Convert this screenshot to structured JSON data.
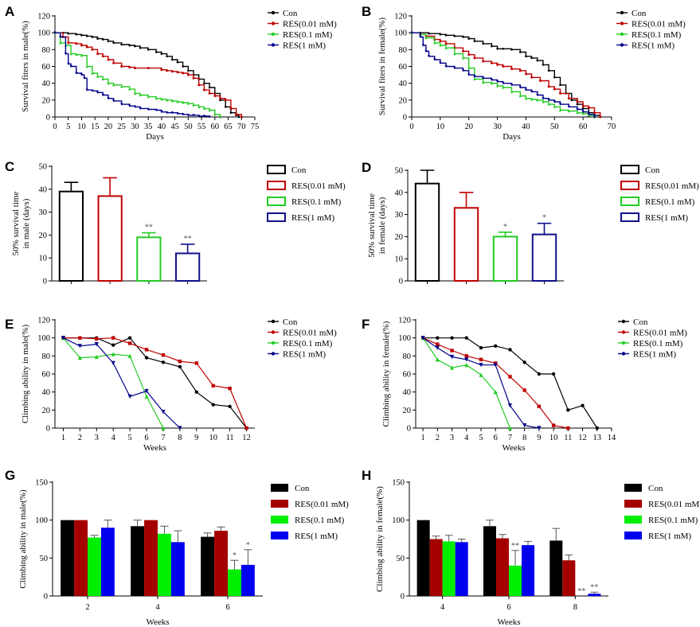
{
  "colors": {
    "con": "#000000",
    "res001": "#c00000",
    "res01": "#22cc22",
    "res1": "#10108a",
    "res001_bar": "#a50000",
    "res01_bar": "#00ee00",
    "res1_bar": "#0000ee",
    "res1_line": "#00008b"
  },
  "series_names": [
    "Con",
    "RES(0.01 mM)",
    "RES(0.1 mM)",
    "RES(1 mM)"
  ],
  "chart_data": [
    {
      "panel": "A",
      "type": "line",
      "ylabel": "Survival fiters in male(%)",
      "xlabel": "Days",
      "xlim": [
        0,
        75
      ],
      "ylim": [
        0,
        120
      ],
      "xticks": [
        0,
        5,
        10,
        15,
        20,
        25,
        30,
        35,
        40,
        45,
        50,
        55,
        60,
        65,
        70,
        75
      ],
      "yticks": [
        0,
        20,
        40,
        60,
        80,
        100,
        120
      ],
      "series": [
        {
          "name": "Con",
          "step": true,
          "x": [
            0,
            3,
            5,
            8,
            10,
            12,
            14,
            16,
            18,
            20,
            22,
            25,
            28,
            30,
            32,
            35,
            38,
            40,
            42,
            44,
            46,
            48,
            50,
            52,
            54,
            56,
            58,
            60,
            62,
            64,
            66,
            68,
            69
          ],
          "y": [
            100,
            100,
            99,
            98,
            97,
            96,
            95,
            93,
            92,
            90,
            88,
            86,
            85,
            84,
            82,
            80,
            77,
            75,
            72,
            68,
            65,
            60,
            55,
            50,
            45,
            40,
            35,
            28,
            20,
            12,
            5,
            2,
            0
          ]
        },
        {
          "name": "RES(0.01 mM)",
          "step": true,
          "x": [
            0,
            3,
            5,
            8,
            10,
            12,
            14,
            16,
            18,
            20,
            22,
            25,
            28,
            30,
            35,
            40,
            42,
            44,
            46,
            48,
            50,
            52,
            54,
            56,
            58,
            60,
            62,
            64,
            66,
            68,
            70
          ],
          "y": [
            100,
            95,
            88,
            87,
            85,
            83,
            80,
            75,
            72,
            68,
            64,
            60,
            59,
            58,
            58,
            56,
            55,
            54,
            53,
            52,
            50,
            46,
            38,
            32,
            28,
            25,
            22,
            20,
            10,
            3,
            0
          ]
        },
        {
          "name": "RES(0.1 mM)",
          "step": true,
          "x": [
            0,
            2,
            4,
            6,
            8,
            10,
            12,
            14,
            16,
            18,
            20,
            22,
            25,
            28,
            30,
            32,
            35,
            38,
            40,
            42,
            44,
            46,
            48,
            50,
            52,
            54,
            56,
            58,
            60,
            62
          ],
          "y": [
            100,
            88,
            85,
            75,
            74,
            73,
            60,
            52,
            48,
            45,
            40,
            38,
            36,
            33,
            28,
            26,
            24,
            22,
            21,
            20,
            19,
            18,
            17,
            16,
            14,
            12,
            10,
            8,
            3,
            0
          ]
        },
        {
          "name": "RES(1 mM)",
          "step": true,
          "x": [
            0,
            2,
            4,
            5,
            6,
            8,
            10,
            11,
            12,
            14,
            16,
            18,
            20,
            22,
            25,
            28,
            30,
            32,
            35,
            38,
            40,
            42,
            44,
            46,
            48,
            50,
            52,
            54,
            56,
            58
          ],
          "y": [
            100,
            95,
            75,
            63,
            60,
            52,
            50,
            46,
            32,
            31,
            29,
            26,
            22,
            19,
            15,
            13,
            12,
            10,
            9,
            8,
            6,
            5,
            5,
            4,
            3,
            2,
            2,
            1,
            1,
            0
          ]
        }
      ]
    },
    {
      "panel": "B",
      "type": "line",
      "ylabel": "Survival fiters in female(%)",
      "xlabel": "Days",
      "xlim": [
        0,
        70
      ],
      "ylim": [
        0,
        120
      ],
      "xticks": [
        0,
        10,
        20,
        30,
        40,
        50,
        60,
        70
      ],
      "yticks": [
        0,
        20,
        40,
        60,
        80,
        100,
        120
      ],
      "series": [
        {
          "name": "Con",
          "step": true,
          "x": [
            0,
            3,
            6,
            10,
            12,
            15,
            18,
            20,
            22,
            25,
            28,
            30,
            32,
            35,
            38,
            40,
            42,
            44,
            46,
            48,
            50,
            52,
            54,
            56,
            58,
            60,
            62,
            64,
            66
          ],
          "y": [
            100,
            100,
            99,
            98,
            97,
            96,
            95,
            93,
            90,
            87,
            84,
            81,
            81,
            80,
            77,
            72,
            70,
            67,
            62,
            55,
            47,
            38,
            28,
            20,
            15,
            10,
            5,
            2,
            0
          ]
        },
        {
          "name": "RES(0.01 mM)",
          "step": true,
          "x": [
            0,
            3,
            5,
            8,
            10,
            12,
            15,
            18,
            20,
            22,
            25,
            28,
            30,
            32,
            35,
            38,
            40,
            42,
            45,
            48,
            50,
            52,
            55,
            58,
            60,
            62,
            64,
            66
          ],
          "y": [
            100,
            98,
            96,
            92,
            90,
            87,
            82,
            78,
            74,
            70,
            66,
            64,
            62,
            60,
            57,
            55,
            51,
            47,
            43,
            36,
            33,
            28,
            22,
            18,
            13,
            11,
            5,
            0
          ]
        },
        {
          "name": "RES(0.1 mM)",
          "step": true,
          "x": [
            0,
            3,
            5,
            8,
            10,
            12,
            15,
            18,
            20,
            22,
            25,
            28,
            30,
            32,
            35,
            38,
            40,
            42,
            44,
            46,
            48,
            50,
            52,
            55,
            58,
            60,
            62,
            64
          ],
          "y": [
            100,
            98,
            94,
            88,
            85,
            82,
            75,
            70,
            58,
            45,
            41,
            40,
            37,
            35,
            30,
            25,
            22,
            21,
            20,
            18,
            15,
            12,
            8,
            7,
            5,
            4,
            2,
            0
          ]
        },
        {
          "name": "RES(1 mM)",
          "step": true,
          "x": [
            0,
            3,
            4,
            5,
            6,
            8,
            10,
            12,
            15,
            18,
            20,
            22,
            25,
            28,
            30,
            32,
            35,
            38,
            40,
            42,
            44,
            46,
            48,
            50,
            52,
            55,
            58,
            60,
            62,
            64
          ],
          "y": [
            100,
            95,
            85,
            78,
            72,
            68,
            64,
            60,
            58,
            55,
            50,
            48,
            46,
            44,
            42,
            40,
            38,
            35,
            32,
            30,
            26,
            22,
            20,
            18,
            15,
            12,
            9,
            6,
            3,
            0
          ]
        }
      ]
    },
    {
      "panel": "C",
      "type": "bar",
      "ylabel": "50% survival time in male (days)",
      "ylim": [
        0,
        50
      ],
      "yticks": [
        0,
        10,
        20,
        30,
        40,
        50
      ],
      "categories": [
        "Con",
        "RES(0.01 mM)",
        "RES(0.1 mM)",
        "RES(1 mM)"
      ],
      "values": [
        39,
        37,
        19,
        12
      ],
      "errors": [
        4,
        8,
        2,
        4
      ],
      "annotations": [
        "",
        "",
        "**",
        "**"
      ]
    },
    {
      "panel": "D",
      "type": "bar",
      "ylabel": "50% survival time in female (days)",
      "ylim": [
        0,
        50
      ],
      "yticks": [
        0,
        10,
        20,
        30,
        40,
        50
      ],
      "categories": [
        "Con",
        "RES(0.01 mM)",
        "RES(0.1 mM)",
        "RES(1 mM)"
      ],
      "values": [
        44,
        33,
        20,
        21
      ],
      "errors": [
        6,
        7,
        2,
        5
      ],
      "annotations": [
        "",
        "",
        "*",
        "*"
      ]
    },
    {
      "panel": "E",
      "type": "line",
      "ylabel": "Climbing ability in male(%)",
      "xlabel": "Weeks",
      "xlim": [
        0.5,
        12.5
      ],
      "ylim": [
        0,
        120
      ],
      "xticks": [
        1,
        2,
        3,
        4,
        5,
        6,
        7,
        8,
        9,
        10,
        11,
        12
      ],
      "yticks": [
        0,
        20,
        40,
        60,
        80,
        100,
        120
      ],
      "series": [
        {
          "name": "Con",
          "x": [
            1,
            2,
            3,
            4,
            5,
            6,
            7,
            8,
            9,
            10,
            11,
            12
          ],
          "y": [
            100,
            100,
            100,
            92,
            100,
            78,
            73,
            68,
            40,
            26,
            24,
            0
          ]
        },
        {
          "name": "RES(0.01 mM)",
          "x": [
            1,
            2,
            3,
            4,
            5,
            6,
            7,
            8,
            9,
            10,
            11,
            12
          ],
          "y": [
            100,
            100,
            99,
            100,
            94,
            87,
            81,
            74,
            72,
            47,
            44,
            0
          ]
        },
        {
          "name": "RES(0.1 mM)",
          "x": [
            1,
            2,
            3,
            4,
            5,
            6,
            7
          ],
          "y": [
            100,
            78,
            79,
            82,
            80,
            35,
            0
          ]
        },
        {
          "name": "RES(1 mM)",
          "x": [
            1,
            2,
            3,
            4,
            5,
            6,
            7,
            8
          ],
          "y": [
            100,
            91,
            93,
            72,
            35,
            41,
            18,
            0
          ]
        }
      ]
    },
    {
      "panel": "F",
      "type": "line",
      "ylabel": "Climbing ability in female(%)",
      "xlabel": "Weeks",
      "xlim": [
        0.5,
        14
      ],
      "ylim": [
        0,
        120
      ],
      "xticks": [
        1,
        2,
        3,
        4,
        5,
        6,
        7,
        8,
        9,
        10,
        11,
        12,
        13,
        14
      ],
      "yticks": [
        0,
        20,
        40,
        60,
        80,
        100,
        120
      ],
      "series": [
        {
          "name": "Con",
          "x": [
            1,
            2,
            3,
            4,
            5,
            6,
            7,
            8,
            9,
            10,
            11,
            12,
            13
          ],
          "y": [
            100,
            100,
            100,
            100,
            89,
            91,
            87,
            73,
            60,
            60,
            20,
            25,
            0
          ]
        },
        {
          "name": "RES(0.01 mM)",
          "x": [
            1,
            2,
            3,
            4,
            5,
            6,
            7,
            8,
            9,
            10,
            11
          ],
          "y": [
            100,
            93,
            86,
            80,
            76,
            72,
            57,
            42,
            24,
            3,
            0
          ]
        },
        {
          "name": "RES(0.1 mM)",
          "x": [
            1,
            2,
            3,
            4,
            5,
            6,
            7
          ],
          "y": [
            100,
            76,
            67,
            70,
            59,
            40,
            0
          ]
        },
        {
          "name": "RES(1 mM)",
          "x": [
            1,
            2,
            3,
            4,
            5,
            6,
            7,
            8,
            9
          ],
          "y": [
            100,
            89,
            79,
            76,
            70,
            70,
            25,
            3,
            0
          ]
        }
      ]
    },
    {
      "panel": "G",
      "type": "bar",
      "ylabel": "Climbing ability in male(%)",
      "xlabel": "Weeks",
      "ylim": [
        0,
        150
      ],
      "yticks": [
        0,
        50,
        100,
        150
      ],
      "categories": [
        "2",
        "4",
        "6"
      ],
      "series": [
        {
          "name": "Con",
          "values": [
            100,
            92,
            78
          ],
          "errors": [
            0,
            8,
            5
          ]
        },
        {
          "name": "RES(0.01 mM)",
          "values": [
            100,
            100,
            86
          ],
          "errors": [
            0,
            0,
            5
          ]
        },
        {
          "name": "RES(0.1 mM)",
          "values": [
            77,
            82,
            35
          ],
          "errors": [
            3,
            10,
            12
          ]
        },
        {
          "name": "RES(1 mM)",
          "values": [
            90,
            71,
            41
          ],
          "errors": [
            10,
            15,
            20
          ]
        }
      ],
      "annotations": [
        {
          "category": "6",
          "series": "RES(0.1 mM)",
          "text": "*"
        },
        {
          "category": "6",
          "series": "RES(1 mM)",
          "text": "*"
        }
      ]
    },
    {
      "panel": "H",
      "type": "bar",
      "ylabel": "Climbing ability in female(%)",
      "xlabel": "Weeks",
      "ylim": [
        0,
        150
      ],
      "yticks": [
        0,
        50,
        100,
        150
      ],
      "categories": [
        "4",
        "6",
        "8"
      ],
      "series": [
        {
          "name": "Con",
          "values": [
            100,
            92,
            73
          ],
          "errors": [
            0,
            8,
            16
          ]
        },
        {
          "name": "RES(0.01 mM)",
          "values": [
            75,
            76,
            47
          ],
          "errors": [
            4,
            5,
            7
          ]
        },
        {
          "name": "RES(0.1 mM)",
          "values": [
            72,
            40,
            0
          ],
          "errors": [
            8,
            20,
            0
          ]
        },
        {
          "name": "RES(1 mM)",
          "values": [
            71,
            67,
            3
          ],
          "errors": [
            4,
            5,
            2
          ]
        }
      ],
      "annotations": [
        {
          "category": "6",
          "series": "RES(0.1 mM)",
          "text": "**"
        },
        {
          "category": "8",
          "series": "RES(0.1 mM)",
          "text": "**"
        },
        {
          "category": "8",
          "series": "RES(1 mM)",
          "text": "**"
        }
      ]
    }
  ]
}
